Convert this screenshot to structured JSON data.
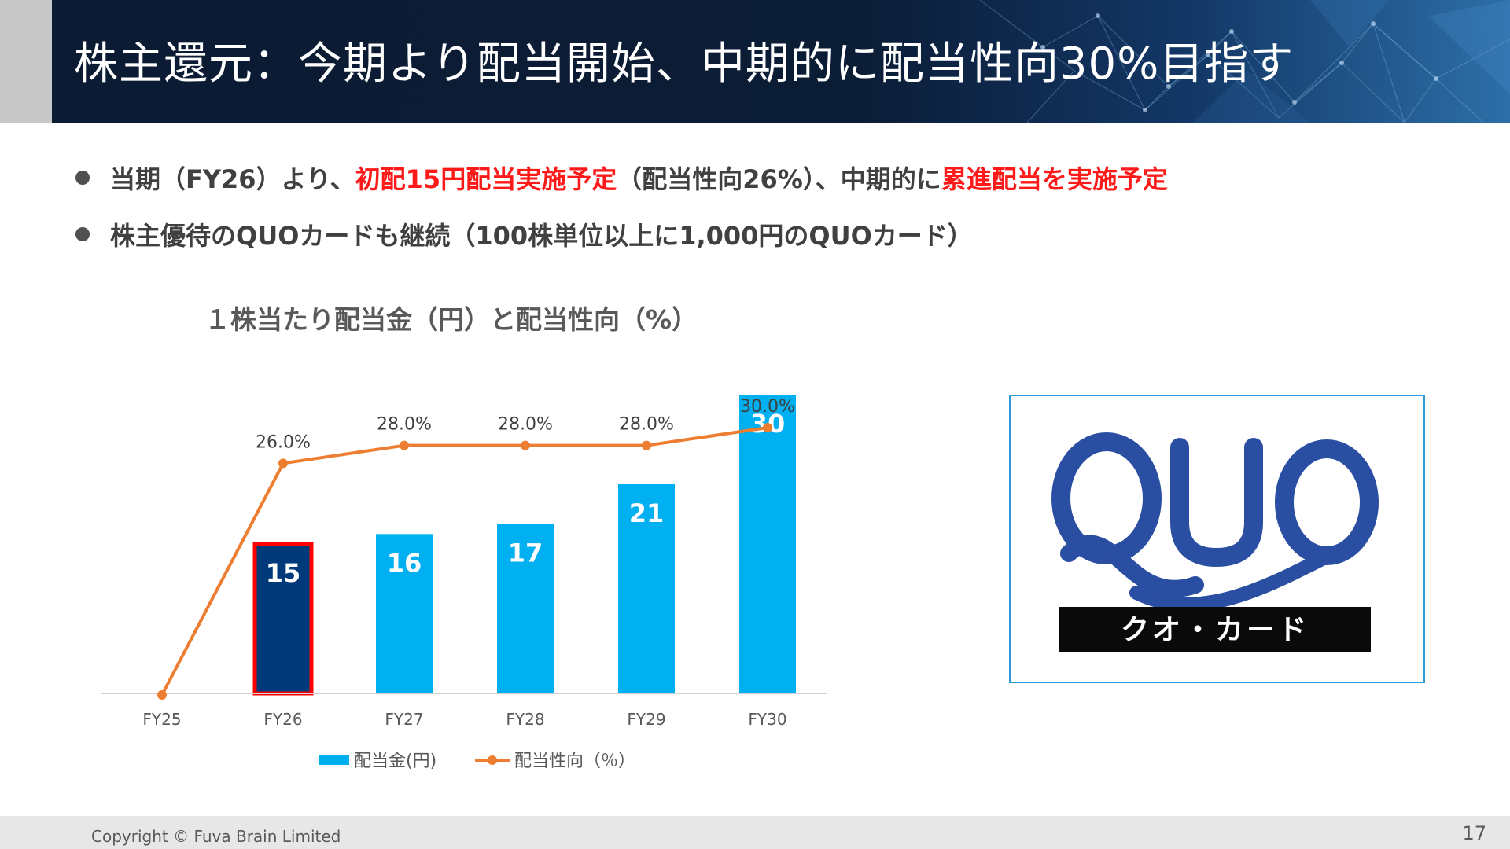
{
  "header": {
    "title": "株主還元：今期より配当開始、中期的に配当性向30%目指す"
  },
  "bullets": [
    {
      "parts": [
        {
          "text": "当期（FY26）より、",
          "highlight": false
        },
        {
          "text": "初配15円配当実施予定",
          "highlight": true
        },
        {
          "text": "（配当性向26%）、中期的に",
          "highlight": false
        },
        {
          "text": "累進配当を実施予定",
          "highlight": true
        }
      ]
    },
    {
      "parts": [
        {
          "text": "株主優待のQUOカードも継続（100株単位以上に1,000円のQUOカード）",
          "highlight": false
        }
      ]
    }
  ],
  "chart_data": {
    "type": "bar",
    "title": "１株当たり配当金（円）と配当性向（%）",
    "categories": [
      "FY25",
      "FY26",
      "FY27",
      "FY28",
      "FY29",
      "FY30"
    ],
    "series": [
      {
        "name": "配当金(円)",
        "type": "bar",
        "values": [
          0,
          15,
          16,
          17,
          21,
          30
        ],
        "data_labels": [
          "",
          "15",
          "16",
          "17",
          "21",
          "30"
        ],
        "color": "#00b0f0",
        "highlight_color": "#003a7a",
        "highlight_border": "#ff0000",
        "highlight_index": 1
      },
      {
        "name": "配当性向（％）",
        "type": "line",
        "values": [
          0,
          26.0,
          28.0,
          28.0,
          28.0,
          30.0
        ],
        "data_labels": [
          "",
          "26.0%",
          "28.0%",
          "28.0%",
          "28.0%",
          "30.0%"
        ],
        "color": "#ed7d31"
      }
    ],
    "bar_ylim": [
      0,
      30
    ],
    "line_ylim": [
      0,
      30
    ],
    "legend_position": "bottom",
    "grid": false
  },
  "quo_card": {
    "logo_text": "QUO",
    "caption": "クオ・カード",
    "logo_color": "#2a4ea2"
  },
  "footer": {
    "copyright": "Copyright © Fuva Brain Limited",
    "page_number": "17"
  }
}
